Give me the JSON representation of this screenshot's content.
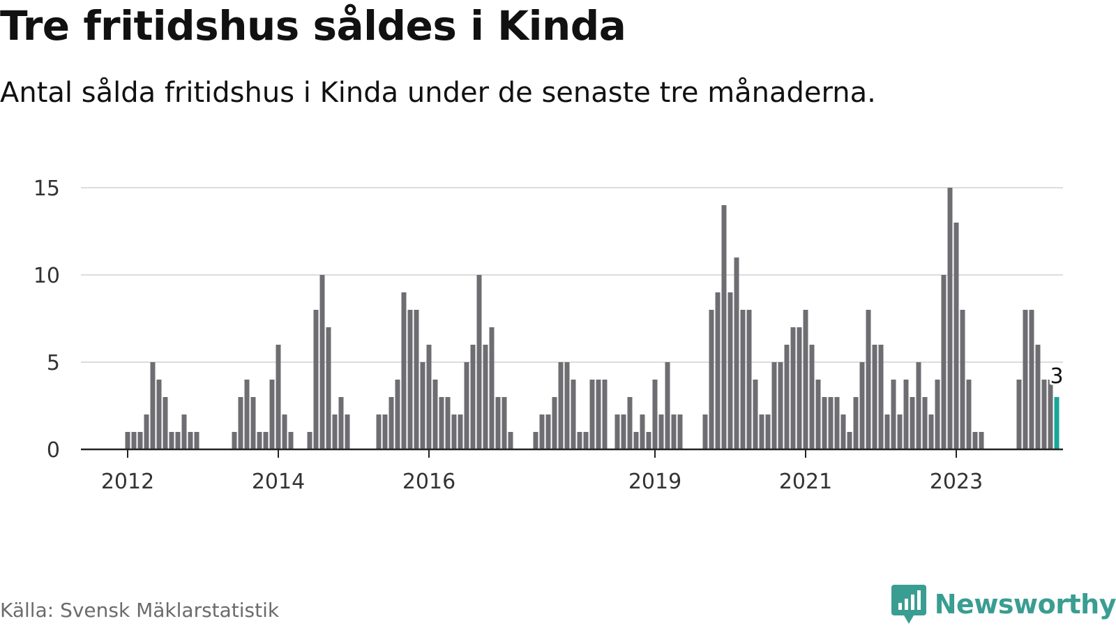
{
  "title": "Tre fritidshus såldes i Kinda",
  "subtitle": "Antal sålda fritidshus i Kinda under de senaste tre månaderna.",
  "source": "Källa: Svensk Mäklarstatistik",
  "brand": "Newsworthy",
  "colors": {
    "bar": "#6e6d72",
    "highlight": "#1aa59a",
    "grid": "#dcdcdc",
    "axis": "#222222",
    "brand": "#3a9d91"
  },
  "chart_data": {
    "type": "bar",
    "xlabel": "",
    "ylabel": "",
    "ylim": [
      0,
      15
    ],
    "yticks": [
      0,
      5,
      10,
      15
    ],
    "ytick_labels": [
      "0",
      "5",
      "10",
      "15"
    ],
    "xticks": [
      {
        "label": "2012",
        "at": "2012-01"
      },
      {
        "label": "2014",
        "at": "2014-01"
      },
      {
        "label": "2016",
        "at": "2016-01"
      },
      {
        "label": "2019",
        "at": "2019-01"
      },
      {
        "label": "2021",
        "at": "2021-01"
      },
      {
        "label": "2023",
        "at": "2023-01"
      }
    ],
    "x_start": "2011-06",
    "grid": true,
    "legend": "none",
    "values": [
      0,
      0,
      0,
      0,
      0,
      0,
      0,
      1,
      1,
      1,
      2,
      5,
      4,
      3,
      1,
      1,
      2,
      1,
      1,
      0,
      0,
      0,
      0,
      0,
      1,
      3,
      4,
      3,
      1,
      1,
      4,
      6,
      2,
      1,
      0,
      0,
      1,
      8,
      10,
      7,
      2,
      3,
      2,
      0,
      0,
      0,
      0,
      2,
      2,
      3,
      4,
      9,
      8,
      8,
      5,
      6,
      4,
      3,
      3,
      2,
      2,
      5,
      6,
      10,
      6,
      7,
      3,
      3,
      1,
      0,
      0,
      0,
      1,
      2,
      2,
      3,
      5,
      5,
      4,
      1,
      1,
      4,
      4,
      4,
      0,
      2,
      2,
      3,
      1,
      2,
      1,
      4,
      2,
      5,
      2,
      2,
      0,
      0,
      0,
      2,
      8,
      9,
      14,
      9,
      11,
      8,
      8,
      4,
      2,
      2,
      5,
      5,
      6,
      7,
      7,
      8,
      6,
      4,
      3,
      3,
      3,
      2,
      1,
      3,
      5,
      8,
      6,
      6,
      2,
      4,
      2,
      4,
      3,
      5,
      3,
      2,
      4,
      10,
      15,
      13,
      8,
      4,
      1,
      1,
      0,
      0,
      0,
      0,
      0,
      4,
      8,
      8,
      6,
      4,
      4,
      3
    ],
    "highlight_label": "3"
  }
}
